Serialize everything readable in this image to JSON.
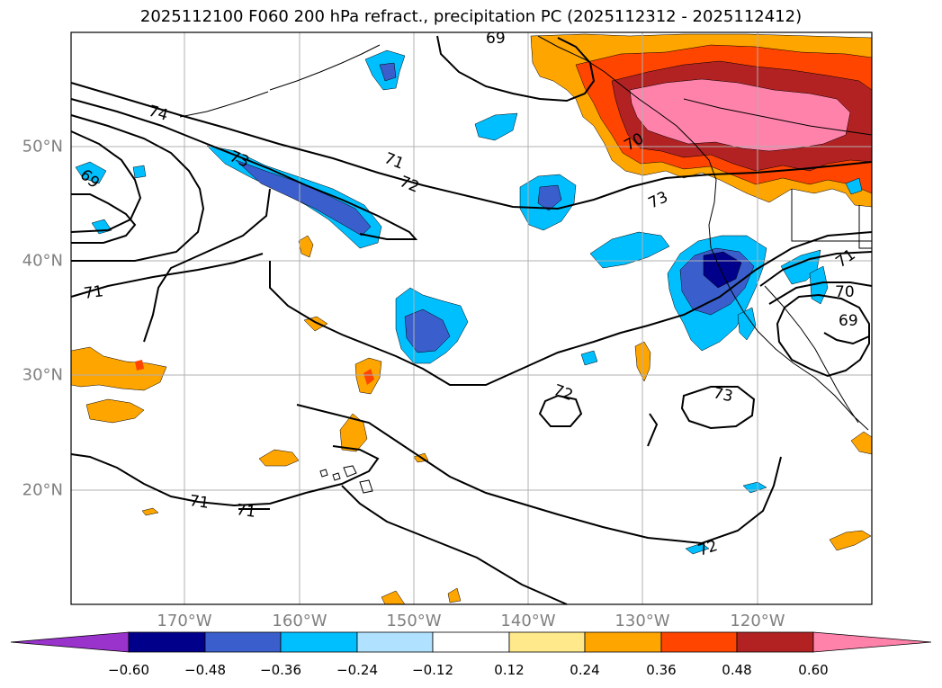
{
  "title": "2025112100 F060 200 hPa refract., precipitation PC (2025112312 - 2025112412)",
  "lat_labels": [
    "50°N",
    "40°N",
    "30°N",
    "20°N"
  ],
  "lon_labels": [
    "170°W",
    "160°W",
    "150°W",
    "140°W",
    "130°W",
    "120°W"
  ],
  "contour_labels": [
    "74",
    "73",
    "71",
    "72",
    "69",
    "69",
    "71",
    "70",
    "73",
    "71",
    "70",
    "69",
    "72",
    "73",
    "71",
    "71",
    "72"
  ],
  "colorbar": {
    "ticks": [
      "−0.60",
      "−0.48",
      "−0.36",
      "−0.24",
      "−0.12",
      "0.12",
      "0.24",
      "0.36",
      "0.48",
      "0.60"
    ],
    "colors": [
      "#9933cc",
      "#00008b",
      "#3a5fcd",
      "#00bfff",
      "#b0e2ff",
      "#ffffff",
      "#ffe98a",
      "#ffa500",
      "#ff4500",
      "#b22222",
      "#ff82ab"
    ]
  },
  "colors": {
    "grid": "#b0b0b0",
    "contour": "#000000",
    "tick_text": "#808080"
  }
}
